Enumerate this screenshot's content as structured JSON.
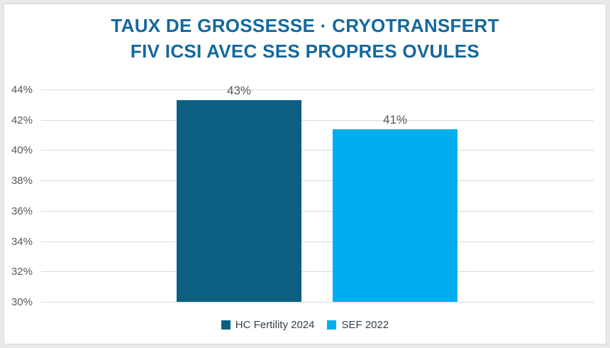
{
  "chart_data": {
    "type": "bar",
    "title": "TAUX DE GROSSESSE · CRYOTRANSFERT FIV ICSI AVEC SES PROPRES OVULES",
    "title_lines": [
      "TAUX DE GROSSESSE · CRYOTRANSFERT",
      "FIV ICSI AVEC SES PROPRES OVULES"
    ],
    "categories": [
      "HC Fertility 2024",
      "SEF 2022"
    ],
    "values": [
      43,
      41
    ],
    "values_precise": [
      43.3,
      41.4
    ],
    "data_labels": [
      "43%",
      "41%"
    ],
    "bar_colors": [
      "#0d5f82",
      "#00aeef"
    ],
    "xlabel": "",
    "ylabel": "",
    "ylim": [
      30,
      44
    ],
    "y_tick_values": [
      44,
      42,
      40,
      38,
      36,
      34,
      32,
      30
    ],
    "y_tick_labels": [
      "44%",
      "42%",
      "40%",
      "38%",
      "36%",
      "34%",
      "32%",
      "30%"
    ],
    "grid": true,
    "legend_position": "bottom",
    "legend": [
      {
        "label": "HC Fertility 2024",
        "color": "#0d5f82"
      },
      {
        "label": "SEF 2022",
        "color": "#00aeef"
      }
    ]
  },
  "colors": {
    "title": "#14689e",
    "axis_text": "#595959",
    "data_label_text": "#595959",
    "legend_text": "#36404f",
    "gridline": "#d9d9d9",
    "panel_background": "#ffffff",
    "frame_background": "#e9e9e9"
  }
}
